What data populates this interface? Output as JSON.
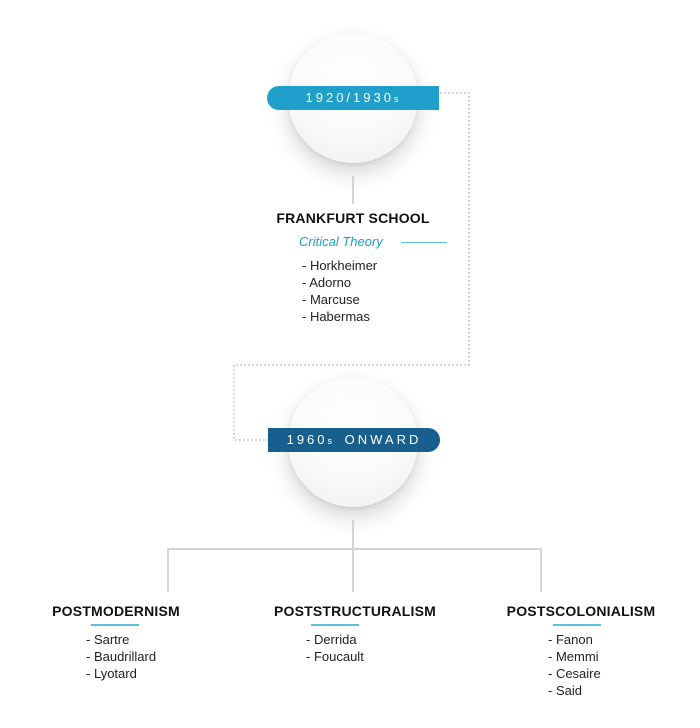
{
  "era1": {
    "years": "1920/1930",
    "suffix": "s",
    "color": "#1f9fc9"
  },
  "frankfurt": {
    "title": "FRANKFURT SCHOOL",
    "subtitle": "Critical Theory",
    "members": [
      "- Horkheimer",
      "- Adorno",
      "- Marcuse",
      "- Habermas"
    ]
  },
  "era2": {
    "years": "1960",
    "suffix": "s",
    "label": "ONWARD",
    "color": "#175f8f"
  },
  "branches": [
    {
      "title": "POSTMODERNISM",
      "members": [
        "- Sartre",
        "- Baudrillard",
        "- Lyotard"
      ]
    },
    {
      "title": "POSTSTRUCTURALISM",
      "members": [
        "- Derrida",
        "- Foucault"
      ]
    },
    {
      "title": "POSTSCOLONIALISM",
      "members": [
        "- Fanon",
        "- Memmi",
        "- Cesaire",
        "- Said"
      ]
    }
  ],
  "accent_light": "#5cc1dc",
  "connector_gray": "#d4d4d4"
}
